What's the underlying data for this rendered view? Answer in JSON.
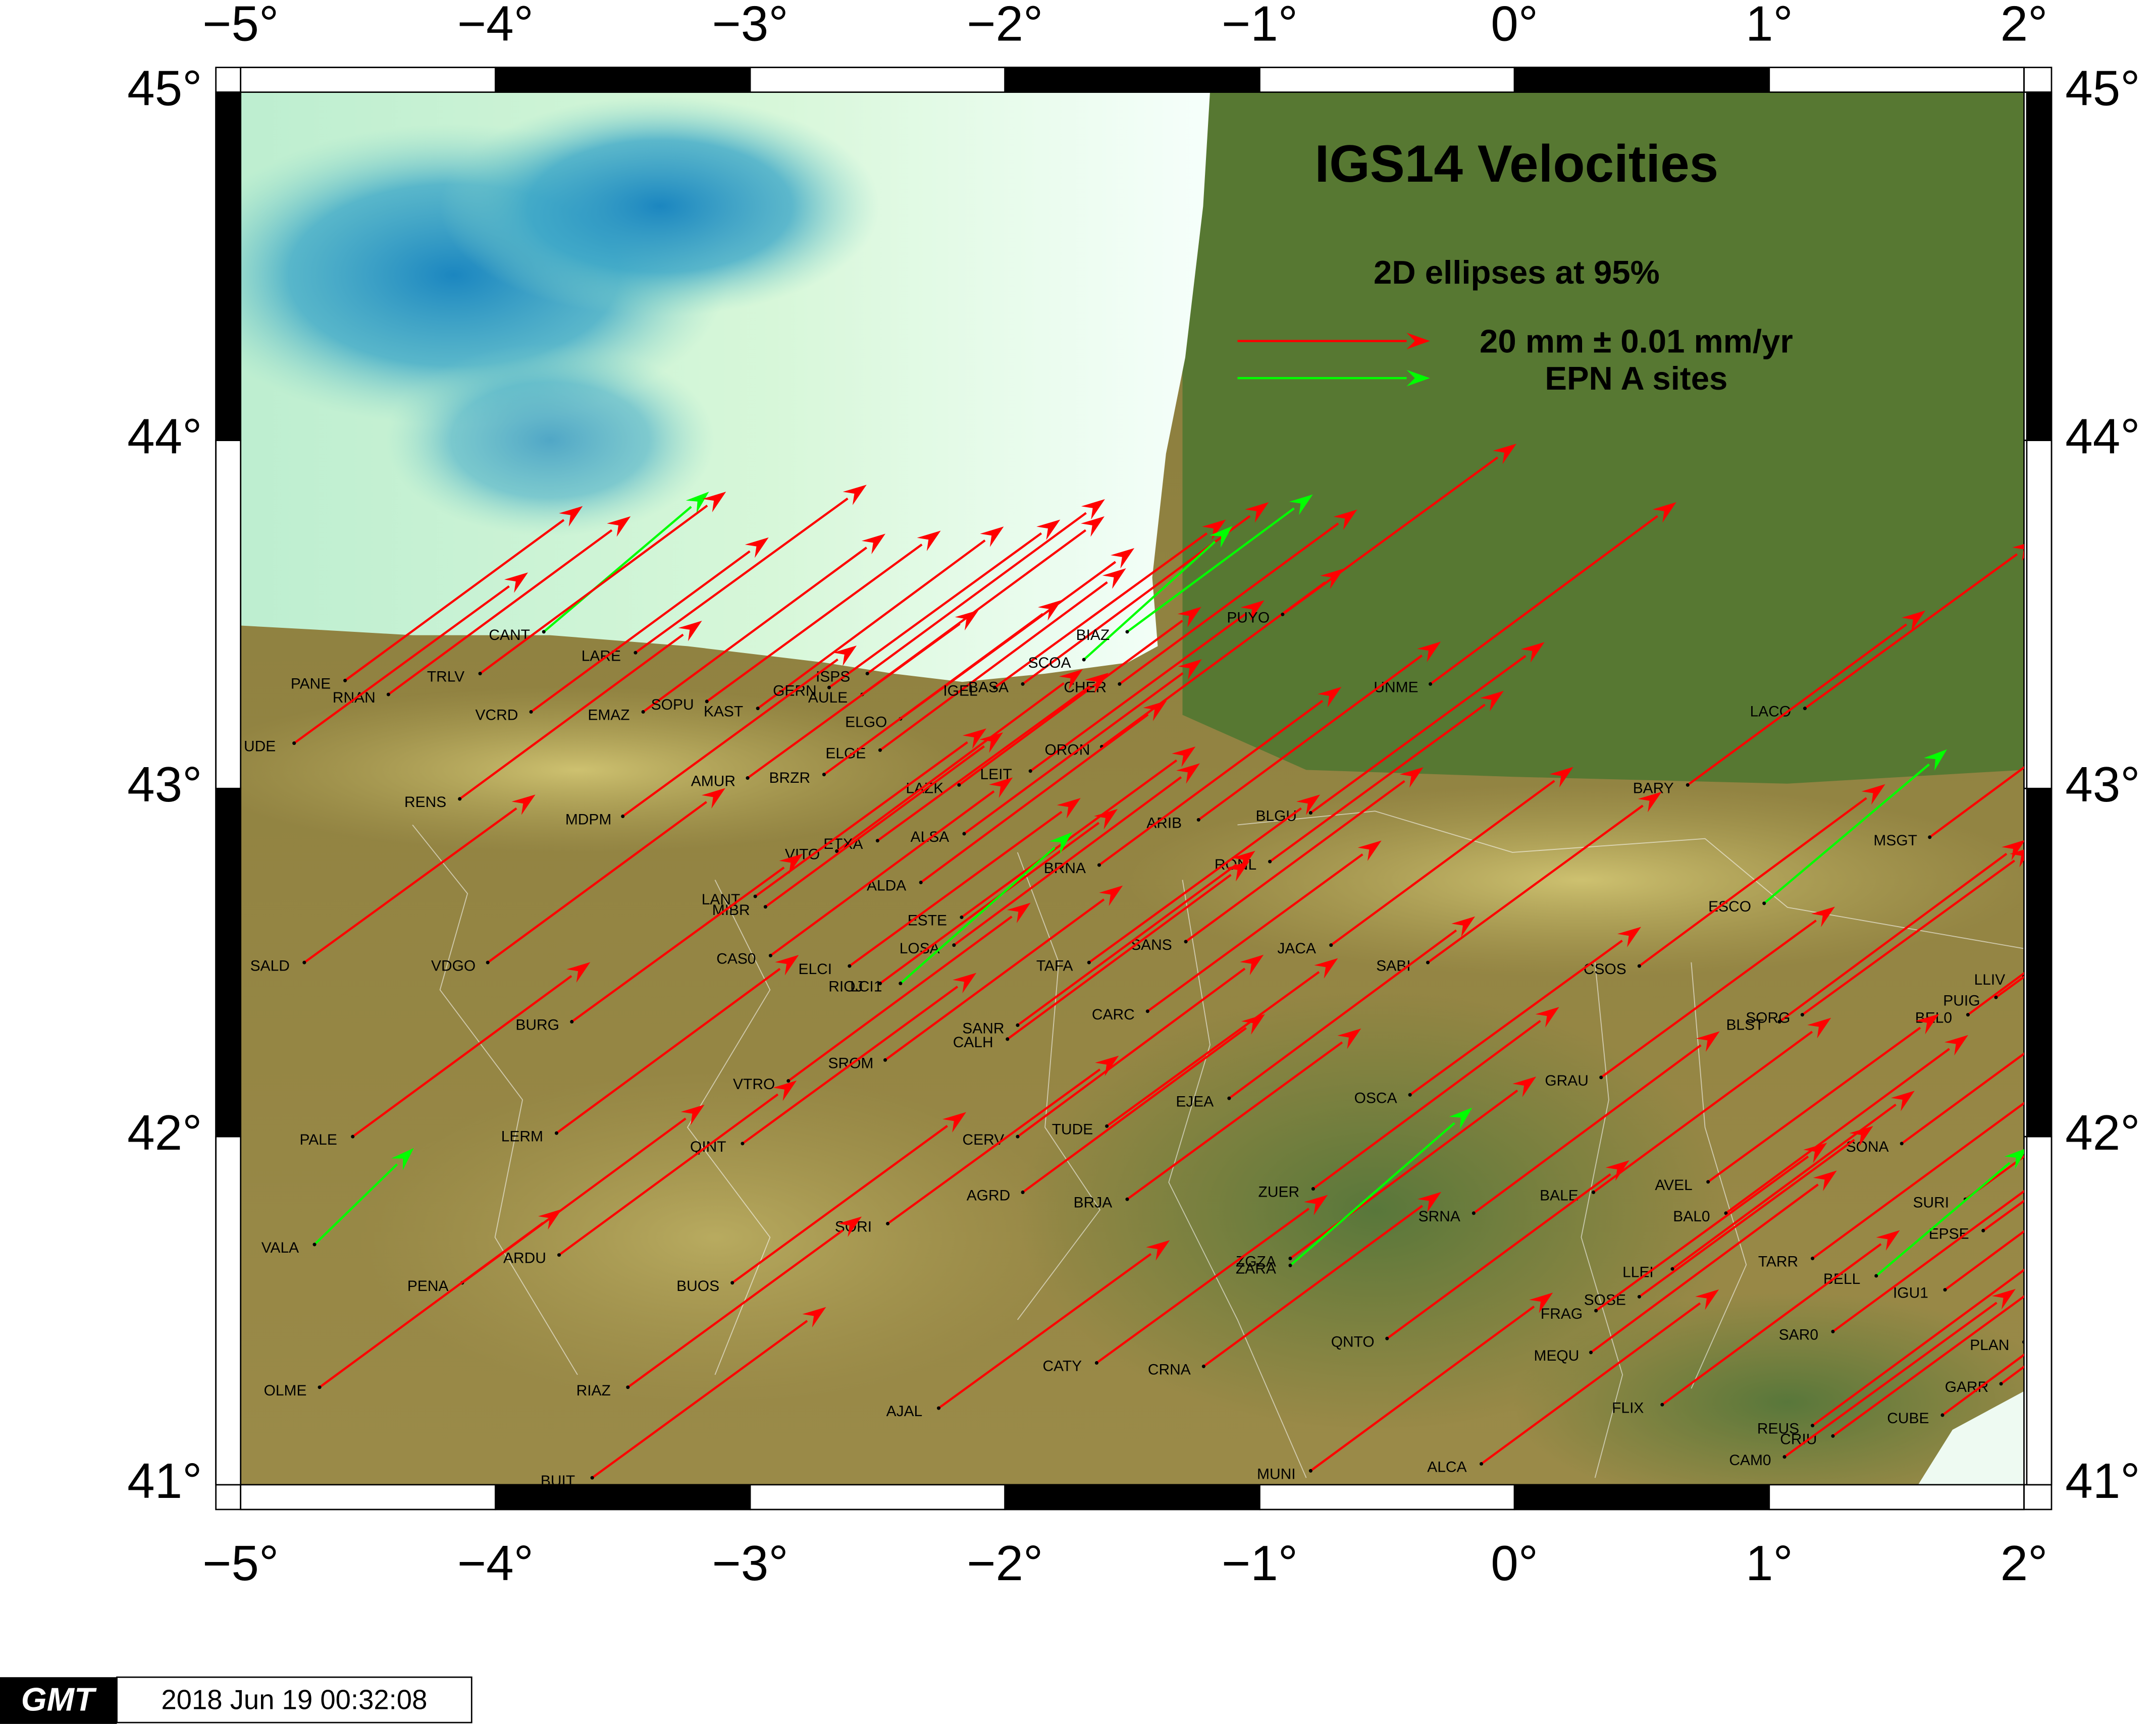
{
  "map": {
    "title": "IGS14 Velocities",
    "subtitle": "2D ellipses at 95%",
    "legend": [
      {
        "label": "20 mm ± 0.01 mm/yr",
        "color": "#ff0000"
      },
      {
        "label": "EPN A sites",
        "color": "#00ff00"
      }
    ],
    "xlim": [
      -5,
      2
    ],
    "ylim": [
      41,
      45
    ],
    "xticks": [
      {
        "value": -5,
        "label": "−5°"
      },
      {
        "value": -4,
        "label": "−4°"
      },
      {
        "value": -3,
        "label": "−3°"
      },
      {
        "value": -2,
        "label": "−2°"
      },
      {
        "value": -1,
        "label": "−1°"
      },
      {
        "value": 0,
        "label": "0°"
      },
      {
        "value": 1,
        "label": "1°"
      },
      {
        "value": 2,
        "label": "2°"
      }
    ],
    "yticks": [
      {
        "value": 41,
        "label": "41°"
      },
      {
        "value": 42,
        "label": "42°"
      },
      {
        "value": 43,
        "label": "43°"
      },
      {
        "value": 44,
        "label": "44°"
      },
      {
        "value": 45,
        "label": "45°"
      }
    ],
    "stations": [
      {
        "name": "PANE",
        "lon": -4.59,
        "lat": 43.31,
        "ve": 25.6,
        "vn": 18.8
      },
      {
        "name": "RNAN",
        "lon": -4.42,
        "lat": 43.27,
        "ve": 26.1,
        "vn": 19.2
      },
      {
        "name": "UDE",
        "lon": -4.79,
        "lat": 43.13,
        "ve": 25.2,
        "vn": 18.4
      },
      {
        "name": "CANT",
        "lon": -3.81,
        "lat": 43.45,
        "ve": 17.8,
        "vn": 15.1,
        "epn": true
      },
      {
        "name": "TRLV",
        "lon": -4.06,
        "lat": 43.33,
        "ve": 26.5,
        "vn": 19.6
      },
      {
        "name": "LARE",
        "lon": -3.45,
        "lat": 43.39,
        "ve": 24.9,
        "vn": 18.1
      },
      {
        "name": "VCRD",
        "lon": -3.86,
        "lat": 43.22,
        "ve": 25.6,
        "vn": 18.8
      },
      {
        "name": "EMAZ",
        "lon": -3.42,
        "lat": 43.22,
        "ve": 26.1,
        "vn": 19.2
      },
      {
        "name": "SOPU",
        "lon": -3.17,
        "lat": 43.25,
        "ve": 25.2,
        "vn": 18.4
      },
      {
        "name": "KAST",
        "lon": -2.97,
        "lat": 43.23,
        "ve": 26.5,
        "vn": 19.6
      },
      {
        "name": "GERN",
        "lon": -2.69,
        "lat": 43.29,
        "ve": 24.9,
        "vn": 18.1
      },
      {
        "name": "ISPS",
        "lon": -2.54,
        "lat": 43.33,
        "ve": 25.6,
        "vn": 18.8
      },
      {
        "name": "AULE",
        "lon": -2.56,
        "lat": 43.27,
        "ve": 26.1,
        "vn": 19.2
      },
      {
        "name": "ELGO",
        "lon": -2.41,
        "lat": 43.2,
        "ve": 25.2,
        "vn": 18.4
      },
      {
        "name": "ELGE",
        "lon": -2.49,
        "lat": 43.11,
        "ve": 26.5,
        "vn": 19.6
      },
      {
        "name": "AMUR",
        "lon": -3.01,
        "lat": 43.03,
        "ve": 24.9,
        "vn": 18.1
      },
      {
        "name": "BRZR",
        "lon": -2.71,
        "lat": 43.04,
        "ve": 25.6,
        "vn": 18.8
      },
      {
        "name": "LAZK",
        "lon": -2.18,
        "lat": 43.01,
        "ve": 26.1,
        "vn": 19.2
      },
      {
        "name": "LEIT",
        "lon": -1.9,
        "lat": 43.05,
        "ve": 25.2,
        "vn": 18.4
      },
      {
        "name": "BASA",
        "lon": -1.93,
        "lat": 43.3,
        "ve": 26.5,
        "vn": 19.6
      },
      {
        "name": "IGEL",
        "lon": -2.04,
        "lat": 43.29,
        "ve": 24.9,
        "vn": 18.1
      },
      {
        "name": "SCOA",
        "lon": -1.69,
        "lat": 43.37,
        "ve": 16.0,
        "vn": 14.4,
        "epn": true
      },
      {
        "name": "BIAZ",
        "lon": -1.52,
        "lat": 43.45,
        "ve": 20.0,
        "vn": 14.8,
        "epn": true
      },
      {
        "name": "CHER",
        "lon": -1.55,
        "lat": 43.3,
        "ve": 25.6,
        "vn": 18.8
      },
      {
        "name": "ORON",
        "lon": -1.62,
        "lat": 43.12,
        "ve": 26.1,
        "vn": 19.2
      },
      {
        "name": "PUYO",
        "lon": -0.91,
        "lat": 43.5,
        "ve": 25.2,
        "vn": 18.4
      },
      {
        "name": "UNME",
        "lon": -0.33,
        "lat": 43.3,
        "ve": 26.5,
        "vn": 19.6
      },
      {
        "name": "LACO",
        "lon": 1.14,
        "lat": 43.23,
        "ve": 24.9,
        "vn": 18.1
      },
      {
        "name": "BARY",
        "lon": 0.68,
        "lat": 43.01,
        "ve": 25.6,
        "vn": 18.8
      },
      {
        "name": "RENS",
        "lon": -4.14,
        "lat": 42.97,
        "ve": 26.1,
        "vn": 19.2
      },
      {
        "name": "MDPM",
        "lon": -3.5,
        "lat": 42.92,
        "ve": 25.2,
        "vn": 18.4
      },
      {
        "name": "VITO",
        "lon": -2.66,
        "lat": 42.82,
        "ve": 26.5,
        "vn": 19.6
      },
      {
        "name": "ETXA",
        "lon": -2.5,
        "lat": 42.85,
        "ve": 24.9,
        "vn": 18.1
      },
      {
        "name": "ALSA",
        "lon": -2.16,
        "lat": 42.87,
        "ve": 25.6,
        "vn": 18.8
      },
      {
        "name": "ARIB",
        "lon": -1.24,
        "lat": 42.91,
        "ve": 26.1,
        "vn": 19.2
      },
      {
        "name": "BLGU",
        "lon": -0.8,
        "lat": 42.93,
        "ve": 25.2,
        "vn": 18.4
      },
      {
        "name": "ALDA",
        "lon": -2.33,
        "lat": 42.73,
        "ve": 26.5,
        "vn": 19.6
      },
      {
        "name": "LANT",
        "lon": -2.98,
        "lat": 42.69,
        "ve": 24.9,
        "vn": 18.1
      },
      {
        "name": "MIBR",
        "lon": -2.94,
        "lat": 42.66,
        "ve": 25.6,
        "vn": 18.8
      },
      {
        "name": "BRNA",
        "lon": -1.63,
        "lat": 42.78,
        "ve": 26.1,
        "vn": 19.2
      },
      {
        "name": "RONL",
        "lon": -0.96,
        "lat": 42.79,
        "ve": 25.2,
        "vn": 18.4
      },
      {
        "name": "MSGT",
        "lon": 1.63,
        "lat": 42.86,
        "ve": 26.5,
        "vn": 19.6
      },
      {
        "name": "ESCO",
        "lon": 0.98,
        "lat": 42.67,
        "ve": 19.7,
        "vn": 16.6,
        "epn": true
      },
      {
        "name": "SALD",
        "lon": -4.75,
        "lat": 42.5,
        "ve": 24.9,
        "vn": 18.1
      },
      {
        "name": "VDGO",
        "lon": -4.03,
        "lat": 42.5,
        "ve": 25.6,
        "vn": 18.8
      },
      {
        "name": "CAS0",
        "lon": -2.92,
        "lat": 42.52,
        "ve": 26.1,
        "vn": 19.2
      },
      {
        "name": "ESTE",
        "lon": -2.17,
        "lat": 42.63,
        "ve": 25.2,
        "vn": 18.4
      },
      {
        "name": "LOSA",
        "lon": -2.2,
        "lat": 42.55,
        "ve": 26.5,
        "vn": 19.6
      },
      {
        "name": "TAFA",
        "lon": -1.67,
        "lat": 42.5,
        "ve": 24.9,
        "vn": 18.1
      },
      {
        "name": "SANS",
        "lon": -1.29,
        "lat": 42.56,
        "ve": 25.6,
        "vn": 18.8
      },
      {
        "name": "JACA",
        "lon": -0.72,
        "lat": 42.55,
        "ve": 26.1,
        "vn": 19.2
      },
      {
        "name": "SABI",
        "lon": -0.34,
        "lat": 42.5,
        "ve": 25.2,
        "vn": 18.4
      },
      {
        "name": "CSOS",
        "lon": 0.49,
        "lat": 42.49,
        "ve": 26.5,
        "vn": 19.6
      },
      {
        "name": "ELCI",
        "lon": -2.61,
        "lat": 42.49,
        "ve": 24.9,
        "vn": 18.1
      },
      {
        "name": "RIOJ",
        "lon": -2.49,
        "lat": 42.44,
        "ve": 25.6,
        "vn": 18.8
      },
      {
        "name": "LCI1",
        "lon": -2.41,
        "lat": 42.44,
        "ve": 18.5,
        "vn": 16.3,
        "epn": true
      },
      {
        "name": "LLIV",
        "lon": 2.0,
        "lat": 42.46,
        "ve": 26.1,
        "vn": 19.2
      },
      {
        "name": "PUIG",
        "lon": 1.89,
        "lat": 42.4,
        "ve": 25.2,
        "vn": 18.4
      },
      {
        "name": "BEL0",
        "lon": 1.78,
        "lat": 42.35,
        "ve": 26.5,
        "vn": 19.6
      },
      {
        "name": "BURG",
        "lon": -3.7,
        "lat": 42.33,
        "ve": 24.9,
        "vn": 18.1
      },
      {
        "name": "SANR",
        "lon": -1.95,
        "lat": 42.32,
        "ve": 25.6,
        "vn": 18.8
      },
      {
        "name": "CALH",
        "lon": -1.99,
        "lat": 42.28,
        "ve": 26.1,
        "vn": 19.2
      },
      {
        "name": "CARC",
        "lon": -1.44,
        "lat": 42.36,
        "ve": 25.2,
        "vn": 18.4
      },
      {
        "name": "BLST",
        "lon": 1.04,
        "lat": 42.33,
        "ve": 26.5,
        "vn": 19.6
      },
      {
        "name": "SORG",
        "lon": 1.13,
        "lat": 42.35,
        "ve": 24.9,
        "vn": 18.1
      },
      {
        "name": "SROM",
        "lon": -2.47,
        "lat": 42.22,
        "ve": 25.6,
        "vn": 18.8
      },
      {
        "name": "VTRO",
        "lon": -2.85,
        "lat": 42.16,
        "ve": 26.1,
        "vn": 19.2
      },
      {
        "name": "GRAU",
        "lon": 0.34,
        "lat": 42.17,
        "ve": 25.2,
        "vn": 18.4
      },
      {
        "name": "EJEA",
        "lon": -1.12,
        "lat": 42.11,
        "ve": 26.5,
        "vn": 19.6
      },
      {
        "name": "OSCA",
        "lon": -0.41,
        "lat": 42.12,
        "ve": 24.9,
        "vn": 18.1
      },
      {
        "name": "PALE",
        "lon": -4.56,
        "lat": 42.0,
        "ve": 25.6,
        "vn": 18.8
      },
      {
        "name": "LERM",
        "lon": -3.76,
        "lat": 42.01,
        "ve": 26.1,
        "vn": 19.2
      },
      {
        "name": "QINT",
        "lon": -3.03,
        "lat": 41.98,
        "ve": 25.2,
        "vn": 18.4
      },
      {
        "name": "CERV",
        "lon": -1.95,
        "lat": 42.0,
        "ve": 26.5,
        "vn": 19.6
      },
      {
        "name": "TUDE",
        "lon": -1.6,
        "lat": 42.03,
        "ve": 24.9,
        "vn": 18.1
      },
      {
        "name": "SONA",
        "lon": 1.52,
        "lat": 41.98,
        "ve": 25.6,
        "vn": 18.8
      },
      {
        "name": "AGRD",
        "lon": -1.93,
        "lat": 41.84,
        "ve": 26.1,
        "vn": 19.2
      },
      {
        "name": "BRJA",
        "lon": -1.52,
        "lat": 41.82,
        "ve": 25.2,
        "vn": 18.4
      },
      {
        "name": "ZUER",
        "lon": -0.79,
        "lat": 41.85,
        "ve": 26.5,
        "vn": 19.6
      },
      {
        "name": "AVEL",
        "lon": 0.76,
        "lat": 41.87,
        "ve": 24.9,
        "vn": 18.1
      },
      {
        "name": "BALE",
        "lon": 0.31,
        "lat": 41.84,
        "ve": 25.6,
        "vn": 18.8
      },
      {
        "name": "BAL0",
        "lon": 0.83,
        "lat": 41.78,
        "ve": 26.1,
        "vn": 19.2
      },
      {
        "name": "SURI",
        "lon": 1.77,
        "lat": 41.82,
        "ve": 25.2,
        "vn": 18.4
      },
      {
        "name": "SRNA",
        "lon": -0.16,
        "lat": 41.78,
        "ve": 26.5,
        "vn": 19.6
      },
      {
        "name": "SORI",
        "lon": -2.46,
        "lat": 41.75,
        "ve": 24.9,
        "vn": 18.1
      },
      {
        "name": "VALA",
        "lon": -4.71,
        "lat": 41.69,
        "ve": 10.7,
        "vn": 10.4,
        "epn": true
      },
      {
        "name": "ARDU",
        "lon": -3.75,
        "lat": 41.66,
        "ve": 25.6,
        "vn": 18.8
      },
      {
        "name": "PENA",
        "lon": -4.13,
        "lat": 41.58,
        "ve": 26.1,
        "vn": 19.2
      },
      {
        "name": "BUOS",
        "lon": -3.07,
        "lat": 41.58,
        "ve": 25.2,
        "vn": 18.4
      },
      {
        "name": "ZGZA",
        "lon": -0.88,
        "lat": 41.65,
        "ve": 26.5,
        "vn": 19.6
      },
      {
        "name": "ZARA",
        "lon": -0.88,
        "lat": 41.63,
        "ve": 19.6,
        "vn": 17.0,
        "epn": true
      },
      {
        "name": "EPSE",
        "lon": 1.84,
        "lat": 41.73,
        "ve": 24.9,
        "vn": 18.1
      },
      {
        "name": "TARR",
        "lon": 1.17,
        "lat": 41.65,
        "ve": 25.6,
        "vn": 18.8
      },
      {
        "name": "LLEI",
        "lon": 0.62,
        "lat": 41.62,
        "ve": 26.1,
        "vn": 19.2
      },
      {
        "name": "BELL",
        "lon": 1.42,
        "lat": 41.6,
        "ve": 16.3,
        "vn": 13.8,
        "epn": true
      },
      {
        "name": "SOSE",
        "lon": 0.49,
        "lat": 41.54,
        "ve": 25.2,
        "vn": 18.4
      },
      {
        "name": "IGU1",
        "lon": 1.69,
        "lat": 41.56,
        "ve": 26.5,
        "vn": 19.6
      },
      {
        "name": "FRAG",
        "lon": 0.32,
        "lat": 41.5,
        "ve": 24.9,
        "vn": 18.1
      },
      {
        "name": "SAR0",
        "lon": 1.25,
        "lat": 41.44,
        "ve": 25.6,
        "vn": 18.8
      },
      {
        "name": "QNTO",
        "lon": -0.5,
        "lat": 41.42,
        "ve": 26.1,
        "vn": 19.2
      },
      {
        "name": "PLAN",
        "lon": 2.0,
        "lat": 41.41,
        "ve": 25.2,
        "vn": 18.4
      },
      {
        "name": "MEQU",
        "lon": 0.3,
        "lat": 41.38,
        "ve": 26.5,
        "vn": 19.6
      },
      {
        "name": "CATY",
        "lon": -1.64,
        "lat": 41.35,
        "ve": 24.9,
        "vn": 18.1
      },
      {
        "name": "CRNA",
        "lon": -1.22,
        "lat": 41.34,
        "ve": 25.6,
        "vn": 18.8
      },
      {
        "name": "OLME",
        "lon": -4.69,
        "lat": 41.28,
        "ve": 26.1,
        "vn": 19.2
      },
      {
        "name": "RIAZ",
        "lon": -3.48,
        "lat": 41.28,
        "ve": 25.2,
        "vn": 18.4
      },
      {
        "name": "GARR",
        "lon": 1.91,
        "lat": 41.29,
        "ve": 26.5,
        "vn": 19.6
      },
      {
        "name": "AJAL",
        "lon": -2.26,
        "lat": 41.22,
        "ve": 24.9,
        "vn": 18.1
      },
      {
        "name": "FLIX",
        "lon": 0.58,
        "lat": 41.23,
        "ve": 25.6,
        "vn": 18.8
      },
      {
        "name": "REUS",
        "lon": 1.17,
        "lat": 41.17,
        "ve": 26.1,
        "vn": 19.2
      },
      {
        "name": "CRIU",
        "lon": 1.25,
        "lat": 41.14,
        "ve": 25.2,
        "vn": 18.4
      },
      {
        "name": "CUBE",
        "lon": 1.68,
        "lat": 41.2,
        "ve": 26.5,
        "vn": 19.6
      },
      {
        "name": "CAM0",
        "lon": 1.06,
        "lat": 41.08,
        "ve": 24.9,
        "vn": 18.1
      },
      {
        "name": "ALCA",
        "lon": -0.13,
        "lat": 41.06,
        "ve": 25.6,
        "vn": 18.8
      },
      {
        "name": "MUNI",
        "lon": -0.8,
        "lat": 41.04,
        "ve": 26.1,
        "vn": 19.2
      },
      {
        "name": "BUIT",
        "lon": -3.62,
        "lat": 41.02,
        "ve": 25.2,
        "vn": 18.4
      }
    ]
  },
  "footer": {
    "logo": "GMT",
    "timestamp": "2018 Jun 19 00:32:08"
  }
}
